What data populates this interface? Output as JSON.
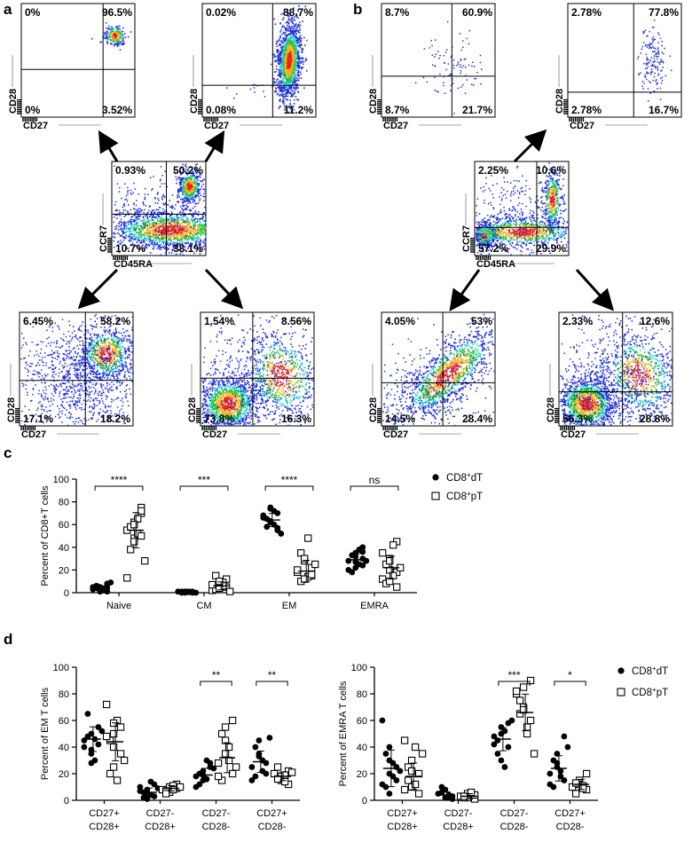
{
  "panel_labels": {
    "a": "a",
    "b": "b",
    "c": "c",
    "d": "d"
  },
  "flow_panels": [
    {
      "id": "a-cd27-cd28-naive",
      "group": "a",
      "x_label": "CD27",
      "y_label": "CD28",
      "quadrants": {
        "ul": "0%",
        "ur": "96.5%",
        "ll": "0%",
        "lr": "3.52%"
      },
      "population": "tight-ur",
      "density": "low"
    },
    {
      "id": "a-cd27-cd28-cm",
      "group": "a",
      "x_label": "CD27",
      "y_label": "CD28",
      "quadrants": {
        "ul": "0.02%",
        "ur": "88.7%",
        "ll": "0.08%",
        "lr": "11.2%"
      },
      "population": "elongated-ur",
      "density": "high"
    },
    {
      "id": "a-ccr7-cd45ra",
      "group": "a",
      "x_label": "CD45RA",
      "y_label": "CCR7",
      "quadrants": {
        "ul": "0.93%",
        "ur": "50.2%",
        "ll": "10.7%",
        "lr": "38.1%"
      },
      "population": "center-gate",
      "density": "high"
    },
    {
      "id": "a-cd27-cd28-em",
      "group": "a",
      "x_label": "CD27",
      "y_label": "CD28",
      "quadrants": {
        "ul": "6.45%",
        "ur": "58.2%",
        "ll": "17.1%",
        "lr": "18.2%"
      },
      "population": "spread-ur",
      "density": "high"
    },
    {
      "id": "a-cd27-cd28-emra",
      "group": "a",
      "x_label": "CD27",
      "y_label": "CD28",
      "quadrants": {
        "ul": "1.54%",
        "ur": "8.56%",
        "ll": "73.8%",
        "lr": "16.3%"
      },
      "population": "ll-heavy",
      "density": "high"
    },
    {
      "id": "b-cd27-cd28-naive",
      "group": "b",
      "x_label": "CD27",
      "y_label": "CD28",
      "quadrants": {
        "ul": "8.7%",
        "ur": "60.9%",
        "ll": "8.7%",
        "lr": "21.7%"
      },
      "population": "sparse",
      "density": "low"
    },
    {
      "id": "b-cd27-cd28-cm",
      "group": "b",
      "x_label": "CD27",
      "y_label": "CD28",
      "quadrants": {
        "ul": "2.78%",
        "ur": "77.8%",
        "ll": "2.78%",
        "lr": "16.7%"
      },
      "population": "sparse-ur",
      "density": "low"
    },
    {
      "id": "b-ccr7-cd45ra",
      "group": "b",
      "x_label": "CD45RA",
      "y_label": "CCR7",
      "quadrants": {
        "ul": "2.25%",
        "ur": "10.6%",
        "ll": "57.2%",
        "lr": "29.9%"
      },
      "population": "center-gate-b",
      "density": "high"
    },
    {
      "id": "b-cd27-cd28-em",
      "group": "b",
      "x_label": "CD27",
      "y_label": "CD28",
      "quadrants": {
        "ul": "4.05%",
        "ur": "53%",
        "ll": "14.5%",
        "lr": "28.4%"
      },
      "population": "diagonal",
      "density": "high"
    },
    {
      "id": "b-cd27-cd28-emra",
      "group": "b",
      "x_label": "CD27",
      "y_label": "CD28",
      "quadrants": {
        "ul": "2.33%",
        "ur": "12.6%",
        "ll": "56.3%",
        "lr": "28.8%"
      },
      "population": "ll-heavy",
      "density": "med"
    }
  ],
  "colors": {
    "dots": "#1f2fd8",
    "hot": "#e8241c",
    "warm": "#f6b21a",
    "mid": "#2dc13a",
    "cyan": "#2ad4d8"
  },
  "chart_data": [
    {
      "type": "scatter",
      "id": "c",
      "ylabel": "Percent of CD8+T cells",
      "ylim": [
        0,
        100
      ],
      "yticks": [
        "0",
        "20",
        "40",
        "60",
        "80",
        "100"
      ],
      "categories": [
        "Naive",
        "CM",
        "EM",
        "EMRA"
      ],
      "series": [
        {
          "name": "CD8+dT",
          "marker": "filled-circle",
          "values": [
            [
              3,
              5,
              2,
              8,
              1,
              4,
              6,
              2,
              3,
              9,
              5,
              2,
              1,
              4,
              7
            ],
            [
              1,
              0,
              1,
              0.5,
              1,
              0,
              1,
              0.5,
              1,
              0,
              1,
              0.5,
              1,
              0
            ],
            [
              68,
              75,
              62,
              55,
              70,
              58,
              65,
              72,
              60,
              52,
              66,
              63,
              74,
              57
            ],
            [
              28,
              35,
              22,
              40,
              30,
              18,
              33,
              25,
              38,
              28,
              20,
              32,
              27,
              36,
              24
            ]
          ],
          "means": [
            4,
            1,
            64,
            29
          ]
        },
        {
          "name": "CD8+pT",
          "marker": "open-square",
          "values": [
            [
              55,
              62,
              48,
              70,
              75,
              38,
              58,
              65,
              52,
              28,
              13,
              60,
              45,
              72,
              50
            ],
            [
              2,
              4,
              8,
              5,
              12,
              15,
              3,
              9,
              6,
              1,
              7,
              10,
              4
            ],
            [
              18,
              12,
              28,
              15,
              22,
              10,
              35,
              48,
              14,
              25,
              20,
              12,
              30,
              16
            ],
            [
              12,
              20,
              30,
              45,
              18,
              8,
              25,
              42,
              15,
              22,
              35,
              10,
              28,
              5
            ]
          ],
          "means": [
            55,
            6,
            19,
            22
          ]
        }
      ],
      "significance": [
        "****",
        "***",
        "****",
        "ns"
      ],
      "legend": [
        "CD8+dT",
        "CD8+pT"
      ]
    },
    {
      "type": "scatter",
      "id": "d-left",
      "ylabel": "Percent of EM T cells",
      "ylim": [
        0,
        100
      ],
      "yticks": [
        "0",
        "20",
        "40",
        "60",
        "80",
        "100"
      ],
      "categories": [
        "CD27+\nCD28+",
        "CD27-\nCD28+",
        "CD27-\nCD28-",
        "CD27+\nCD28-"
      ],
      "series": [
        {
          "name": "CD8+dT",
          "marker": "filled-circle",
          "values": [
            [
              45,
              50,
              38,
              55,
              42,
              48,
              65,
              30,
              46,
              52,
              40,
              35,
              28
            ],
            [
              10,
              5,
              8,
              3,
              12,
              2,
              6,
              14,
              4,
              9,
              7,
              1
            ],
            [
              18,
              22,
              15,
              25,
              28,
              12,
              20,
              30,
              16,
              24,
              10,
              19
            ],
            [
              25,
              35,
              45,
              20,
              28,
              18,
              40,
              30,
              22,
              47,
              15,
              33
            ]
          ],
          "means": [
            46,
            6,
            19,
            29
          ]
        },
        {
          "name": "CD8+pT",
          "marker": "open-square",
          "values": [
            [
              72,
              40,
              50,
              55,
              35,
              20,
              45,
              60,
              15,
              30,
              48,
              25,
              58
            ],
            [
              8,
              10,
              6,
              12,
              9,
              7,
              5,
              11,
              8,
              10
            ],
            [
              28,
              35,
              45,
              60,
              20,
              15,
              50,
              30,
              40,
              25,
              18,
              55
            ],
            [
              20,
              15,
              18,
              22,
              12,
              25,
              16,
              19,
              14,
              21
            ]
          ],
          "means": [
            44,
            9,
            32,
            18
          ]
        }
      ],
      "significance": [
        "",
        "",
        "**",
        "**"
      ]
    },
    {
      "type": "scatter",
      "id": "d-right",
      "ylabel": "Percent of EMRA T cells",
      "ylim": [
        0,
        100
      ],
      "yticks": [
        "0",
        "20",
        "40",
        "60",
        "80",
        "100"
      ],
      "categories": [
        "CD27+\nCD28+",
        "CD27-\nCD28+",
        "CD27-\nCD28-",
        "CD27+\nCD28-"
      ],
      "series": [
        {
          "name": "CD8+dT",
          "marker": "filled-circle",
          "values": [
            [
              60,
              30,
              20,
              15,
              25,
              35,
              10,
              28,
              18,
              22,
              12,
              40,
              5
            ],
            [
              5,
              2,
              8,
              3,
              1,
              6,
              10,
              4,
              2
            ],
            [
              48,
              55,
              30,
              40,
              58,
              45,
              35,
              52,
              25,
              60,
              42,
              50
            ],
            [
              20,
              25,
              35,
              48,
              15,
              30,
              10,
              22,
              18,
              40,
              12,
              28
            ]
          ],
          "means": [
            24,
            4,
            46,
            24
          ]
        },
        {
          "name": "CD8+pT",
          "marker": "open-square",
          "values": [
            [
              45,
              10,
              30,
              5,
              20,
              25,
              15,
              40,
              12,
              35,
              8,
              22
            ],
            [
              3,
              2,
              5,
              1,
              4,
              2,
              3,
              6
            ],
            [
              80,
              70,
              85,
              60,
              90,
              75,
              65,
              55,
              50,
              35,
              82,
              68
            ],
            [
              10,
              15,
              12,
              8,
              20,
              5,
              13,
              11,
              9
            ]
          ],
          "means": [
            18,
            3,
            66,
            12
          ]
        }
      ],
      "significance": [
        "",
        "",
        "***",
        "*"
      ],
      "legend": [
        "CD8+dT",
        "CD8+pT"
      ]
    }
  ]
}
